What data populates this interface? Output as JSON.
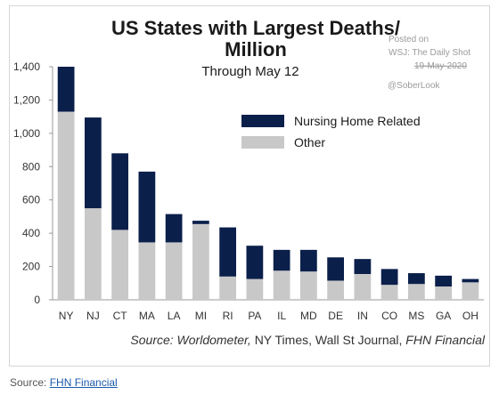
{
  "chart_data": {
    "type": "bar",
    "stacked": true,
    "title_line1": "US States with Largest Deaths/",
    "title_line2": "Million",
    "subtitle": "Through May 12",
    "categories": [
      "NY",
      "NJ",
      "CT",
      "MA",
      "LA",
      "MI",
      "RI",
      "PA",
      "IL",
      "MD",
      "DE",
      "IN",
      "CO",
      "MS",
      "GA",
      "OH"
    ],
    "series": [
      {
        "name": "Other",
        "color": "#c8c8c8",
        "values": [
          1130,
          550,
          420,
          345,
          345,
          455,
          140,
          125,
          175,
          170,
          115,
          155,
          90,
          95,
          80,
          105
        ]
      },
      {
        "name": "Nursing Home Related",
        "color": "#0b1f4b",
        "values": [
          270,
          545,
          460,
          425,
          170,
          20,
          295,
          200,
          125,
          130,
          140,
          90,
          95,
          65,
          65,
          20
        ]
      }
    ],
    "legend_order": [
      "Nursing Home Related",
      "Other"
    ],
    "legend_position": "top-right",
    "y_ticks": [
      "0",
      "200",
      "400",
      "600",
      "800",
      "1,000",
      "1,200",
      "1,400"
    ],
    "ylim": [
      0,
      1400
    ],
    "grid": false,
    "source_prefix": "Source:",
    "source_part1": "Worldometer,",
    "source_part2": "NY Times, Wall St Journal,",
    "source_part3": "FHN Financial"
  },
  "watermark": {
    "posted_on": "Posted on",
    "publication": "WSJ: The Daily Shot",
    "date": "19-May-2020",
    "handle": "@SoberLook"
  },
  "footer": {
    "source_label": "Source:",
    "source_link": "FHN Financial"
  }
}
